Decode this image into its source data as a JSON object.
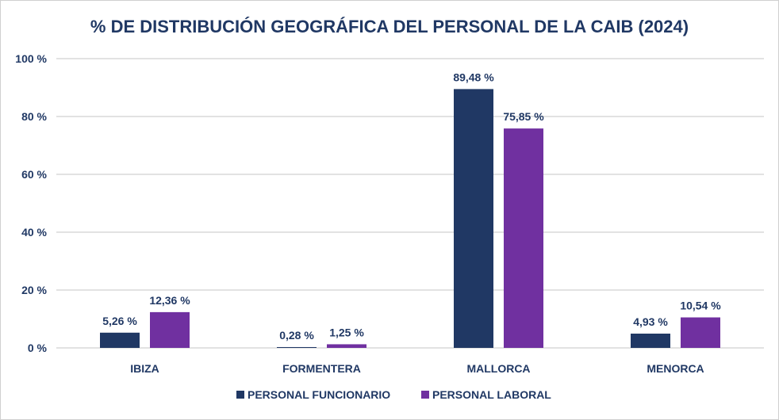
{
  "chart_data": {
    "type": "bar",
    "title": "% DE DISTRIBUCIÓN GEOGRÁFICA DEL PERSONAL DE LA CAIB (2024)",
    "categories": [
      "IBIZA",
      "FORMENTERA",
      "MALLORCA",
      "MENORCA"
    ],
    "series": [
      {
        "name": "PERSONAL FUNCIONARIO",
        "color": "#203864",
        "values": [
          5.26,
          0.28,
          89.48,
          4.93
        ],
        "labels": [
          "5,26 %",
          "0,28 %",
          "89,48 %",
          "4,93 %"
        ]
      },
      {
        "name": "PERSONAL LABORAL",
        "color": "#7030a0",
        "values": [
          12.36,
          1.25,
          75.85,
          10.54
        ],
        "labels": [
          "12,36 %",
          "1,25 %",
          "75,85 %",
          "10,54 %"
        ]
      }
    ],
    "ylim": [
      0,
      100
    ],
    "yticks": [
      0,
      20,
      40,
      60,
      80,
      100
    ],
    "ytick_labels": [
      "0 %",
      "20 %",
      "40 %",
      "60 %",
      "80 %",
      "100 %"
    ],
    "xlabel": "",
    "ylabel": "",
    "grid": true,
    "legend_position": "bottom"
  }
}
